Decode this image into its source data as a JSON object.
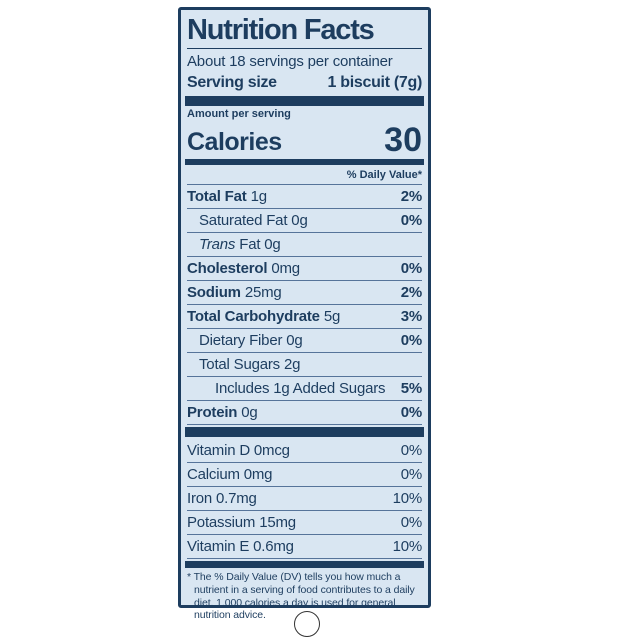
{
  "label": {
    "title": "Nutrition Facts",
    "servings_per_container": "About 18 servings per container",
    "serving_size_label": "Serving size",
    "serving_size_value": "1 biscuit (7g)",
    "amount_per_serving": "Amount per serving",
    "calories_label": "Calories",
    "calories_value": "30",
    "daily_value_header": "% Daily Value*",
    "nutrients": [
      {
        "name": "Total Fat",
        "amount": "1g",
        "dv": "2%"
      },
      {
        "name": "Saturated Fat",
        "amount": "0g",
        "dv": "0%"
      },
      {
        "name": "Trans",
        "amount": "Fat 0g",
        "dv": ""
      },
      {
        "name": "Cholesterol",
        "amount": "0mg",
        "dv": "0%"
      },
      {
        "name": "Sodium",
        "amount": "25mg",
        "dv": "2%"
      },
      {
        "name": "Total Carbohydrate",
        "amount": "5g",
        "dv": "3%"
      },
      {
        "name": "Dietary Fiber",
        "amount": "0g",
        "dv": "0%"
      },
      {
        "name": "Total Sugars",
        "amount": "2g",
        "dv": ""
      },
      {
        "name": "Includes 1g Added Sugars",
        "amount": "",
        "dv": "5%"
      },
      {
        "name": "Protein",
        "amount": "0g",
        "dv": "0%"
      }
    ],
    "micronutrients": [
      {
        "name": "Vitamin D 0mcg",
        "dv": "0%"
      },
      {
        "name": "Calcium 0mg",
        "dv": "0%"
      },
      {
        "name": "Iron 0.7mg",
        "dv": "10%"
      },
      {
        "name": "Potassium 15mg",
        "dv": "0%"
      },
      {
        "name": "Vitamin E 0.6mg",
        "dv": "10%"
      }
    ],
    "footnote": "* The % Daily Value (DV) tells you how much a nutrient in a serving of food contributes to a daily diet. 1,000 calories a day is used for general nutrition advice."
  },
  "colors": {
    "navy": "#1d3d5f",
    "panel_bg": "#d9e6f2",
    "page_bg": "#ffffff",
    "hairline": "#56749a"
  }
}
